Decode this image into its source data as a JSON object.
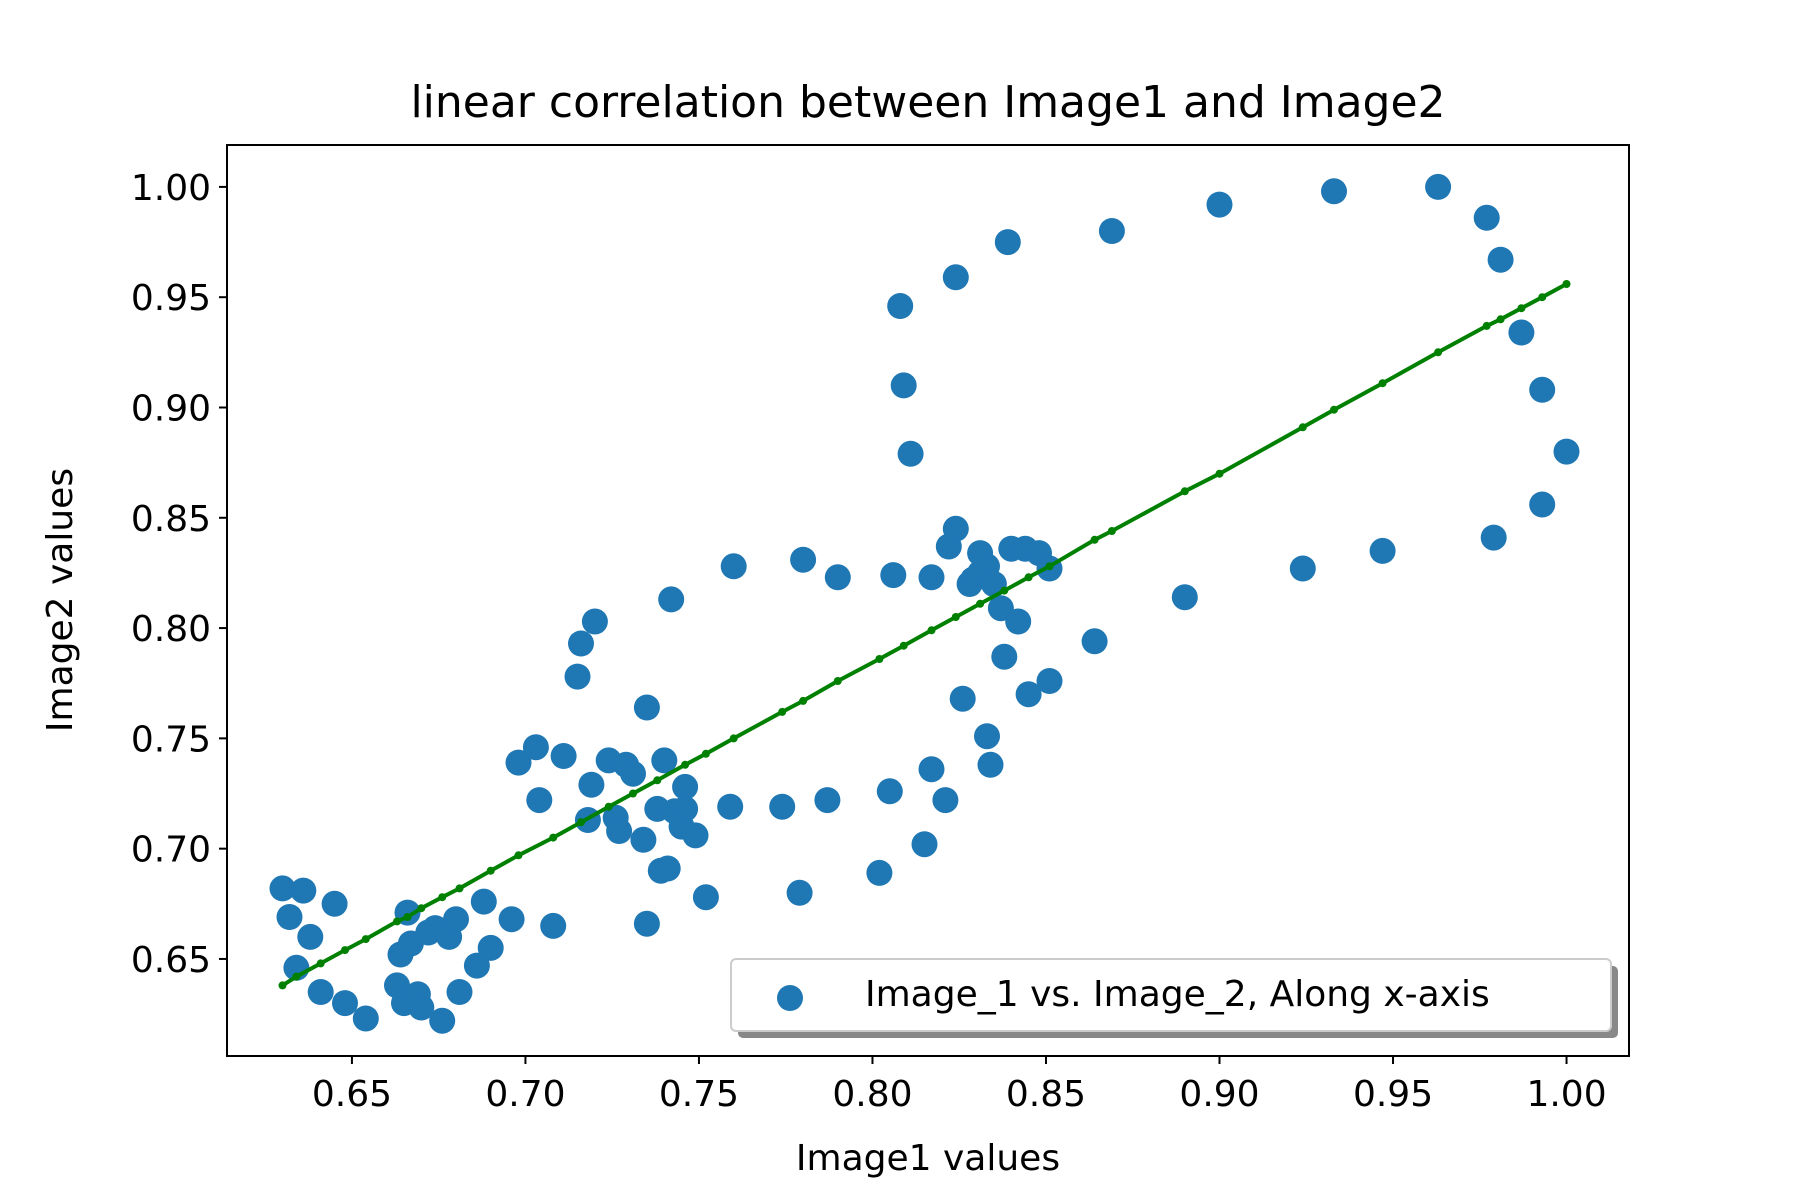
{
  "chart_data": {
    "type": "scatter",
    "title": "linear correlation between Image1 and Image2",
    "xlabel": "Image1 values",
    "ylabel": "Image2 values",
    "xlim": [
      0.614,
      1.018
    ],
    "ylim": [
      0.606,
      1.019
    ],
    "xticks": [
      0.65,
      0.7,
      0.75,
      0.8,
      0.85,
      0.9,
      0.95,
      1.0
    ],
    "xtick_labels": [
      "0.65",
      "0.70",
      "0.75",
      "0.80",
      "0.85",
      "0.90",
      "0.95",
      "1.00"
    ],
    "yticks": [
      0.65,
      0.7,
      0.75,
      0.8,
      0.85,
      0.9,
      0.95,
      1.0
    ],
    "ytick_labels": [
      "0.65",
      "0.70",
      "0.75",
      "0.80",
      "0.85",
      "0.90",
      "0.95",
      "1.00"
    ],
    "legend_placement": "lower-right",
    "grid": false,
    "scatter_color": "#1f77b4",
    "line_color": "#008000",
    "series": [
      {
        "name": "Image_1 vs. Image_2, Along x-axis",
        "kind": "scatter",
        "x": [
          0.63,
          0.632,
          0.634,
          0.636,
          0.638,
          0.641,
          0.645,
          0.648,
          0.654,
          0.663,
          0.664,
          0.665,
          0.666,
          0.667,
          0.669,
          0.67,
          0.672,
          0.674,
          0.676,
          0.678,
          0.68,
          0.681,
          0.686,
          0.688,
          0.69,
          0.696,
          0.698,
          0.703,
          0.704,
          0.708,
          0.711,
          0.715,
          0.716,
          0.718,
          0.719,
          0.72,
          0.724,
          0.726,
          0.727,
          0.729,
          0.731,
          0.734,
          0.735,
          0.735,
          0.738,
          0.739,
          0.74,
          0.741,
          0.742,
          0.743,
          0.745,
          0.746,
          0.746,
          0.749,
          0.752,
          0.759,
          0.76,
          0.774,
          0.779,
          0.78,
          0.787,
          0.79,
          0.802,
          0.805,
          0.806,
          0.808,
          0.809,
          0.811,
          0.815,
          0.817,
          0.817,
          0.821,
          0.822,
          0.824,
          0.824,
          0.826,
          0.828,
          0.829,
          0.831,
          0.831,
          0.833,
          0.833,
          0.834,
          0.835,
          0.837,
          0.838,
          0.839,
          0.84,
          0.842,
          0.844,
          0.845,
          0.848,
          0.851,
          0.851,
          0.864,
          0.869,
          0.89,
          0.9,
          0.924,
          0.933,
          0.947,
          0.963,
          0.977,
          0.979,
          0.981,
          0.987,
          0.993,
          0.993,
          1.0
        ],
        "y": [
          0.682,
          0.669,
          0.646,
          0.681,
          0.66,
          0.635,
          0.675,
          0.63,
          0.623,
          0.638,
          0.652,
          0.63,
          0.671,
          0.657,
          0.634,
          0.628,
          0.662,
          0.664,
          0.622,
          0.66,
          0.668,
          0.635,
          0.647,
          0.676,
          0.655,
          0.668,
          0.739,
          0.746,
          0.722,
          0.665,
          0.742,
          0.778,
          0.793,
          0.713,
          0.729,
          0.803,
          0.74,
          0.714,
          0.708,
          0.738,
          0.734,
          0.704,
          0.764,
          0.666,
          0.718,
          0.69,
          0.74,
          0.691,
          0.813,
          0.717,
          0.71,
          0.728,
          0.718,
          0.706,
          0.678,
          0.719,
          0.828,
          0.719,
          0.68,
          0.831,
          0.722,
          0.823,
          0.689,
          0.726,
          0.824,
          0.946,
          0.91,
          0.879,
          0.702,
          0.736,
          0.823,
          0.722,
          0.837,
          0.845,
          0.959,
          0.768,
          0.82,
          0.822,
          0.834,
          0.825,
          0.828,
          0.751,
          0.738,
          0.82,
          0.809,
          0.787,
          0.975,
          0.836,
          0.803,
          0.836,
          0.77,
          0.834,
          0.827,
          0.776,
          0.794,
          0.98,
          0.814,
          0.992,
          0.827,
          0.998,
          0.835,
          1.0,
          0.986,
          0.841,
          0.967,
          0.934,
          0.908,
          0.856,
          0.88
        ]
      },
      {
        "kind": "line",
        "x": [
          0.63,
          0.634,
          0.641,
          0.648,
          0.654,
          0.663,
          0.666,
          0.67,
          0.676,
          0.681,
          0.69,
          0.698,
          0.708,
          0.716,
          0.724,
          0.731,
          0.738,
          0.746,
          0.752,
          0.76,
          0.774,
          0.78,
          0.79,
          0.802,
          0.809,
          0.817,
          0.824,
          0.831,
          0.838,
          0.845,
          0.851,
          0.864,
          0.869,
          0.89,
          0.9,
          0.924,
          0.933,
          0.947,
          0.963,
          0.977,
          0.981,
          0.987,
          0.993,
          1.0
        ],
        "y": [
          0.638,
          0.642,
          0.648,
          0.654,
          0.659,
          0.667,
          0.669,
          0.673,
          0.678,
          0.682,
          0.69,
          0.697,
          0.705,
          0.712,
          0.719,
          0.725,
          0.731,
          0.738,
          0.743,
          0.75,
          0.762,
          0.767,
          0.776,
          0.786,
          0.792,
          0.799,
          0.805,
          0.811,
          0.817,
          0.823,
          0.828,
          0.84,
          0.844,
          0.862,
          0.87,
          0.891,
          0.899,
          0.911,
          0.925,
          0.937,
          0.94,
          0.945,
          0.95,
          0.956
        ]
      }
    ]
  }
}
